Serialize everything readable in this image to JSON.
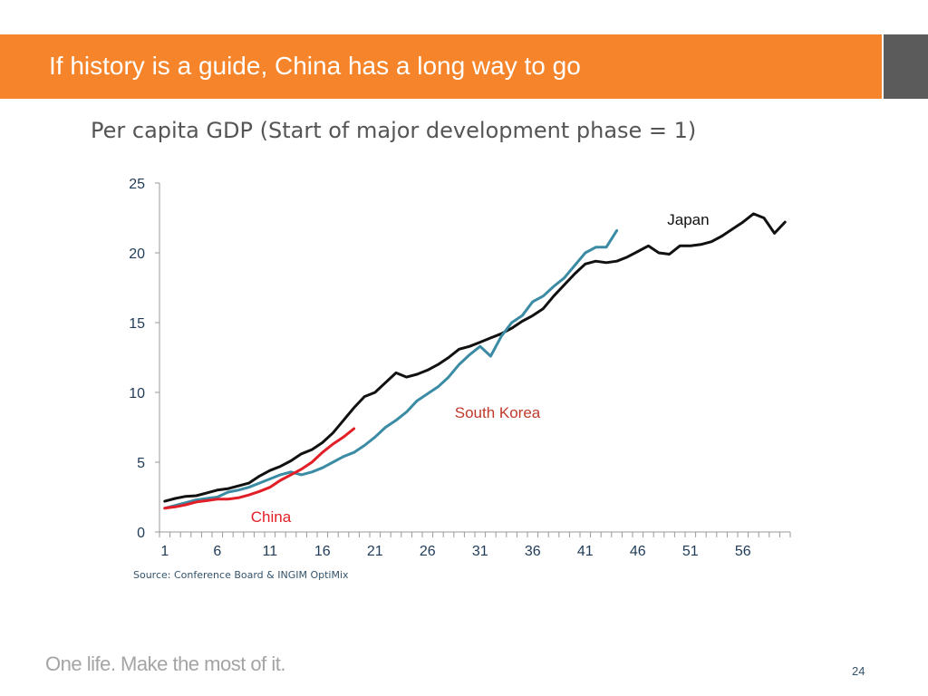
{
  "slide": {
    "title": "If history is a guide, China has a long way to go",
    "source": "Source: Conference Board & INGIM OptiMix",
    "tagline": "One life. Make the most of it.",
    "page_number": "24"
  },
  "colors": {
    "header_orange": "#f5842a",
    "side_block_grey": "#5b5b5b",
    "japan": "#111111",
    "south_korea": "#3a8ba3",
    "china": "#e21e26",
    "south_korea_label": "#c0392b",
    "axis_text": "#1f3b57"
  },
  "chart_data": {
    "type": "line",
    "title": "Per capita GDP (Start of major development phase = 1)",
    "xlabel": "",
    "ylabel": "",
    "xlim": [
      1,
      60
    ],
    "ylim": [
      0,
      25
    ],
    "y_ticks": [
      0,
      5,
      10,
      15,
      20,
      25
    ],
    "x_tick_labels": [
      1,
      6,
      11,
      16,
      21,
      26,
      31,
      36,
      41,
      46,
      51,
      56
    ],
    "grid": false,
    "legend": "inline labels",
    "series": [
      {
        "name": "Japan",
        "color": "#111111",
        "label_color": "#111111",
        "values": [
          2.2,
          2.4,
          2.55,
          2.6,
          2.8,
          3.0,
          3.1,
          3.3,
          3.5,
          4.0,
          4.4,
          4.7,
          5.1,
          5.6,
          5.9,
          6.4,
          7.1,
          8.0,
          8.9,
          9.7,
          10.0,
          10.7,
          11.4,
          11.1,
          11.3,
          11.6,
          12.0,
          12.5,
          13.1,
          13.3,
          13.6,
          13.9,
          14.2,
          14.6,
          15.1,
          15.5,
          16.0,
          16.9,
          17.7,
          18.5,
          19.2,
          19.4,
          19.3,
          19.4,
          19.7,
          20.1,
          20.5,
          20.0,
          19.9,
          20.5,
          20.5,
          20.6,
          20.8,
          21.2,
          21.7,
          22.2,
          22.8,
          22.5,
          21.4,
          22.2
        ]
      },
      {
        "name": "South Korea",
        "color": "#3a8ba3",
        "label_color": "#c0392b",
        "values": [
          1.7,
          1.9,
          2.1,
          2.3,
          2.4,
          2.5,
          2.85,
          3.0,
          3.2,
          3.5,
          3.8,
          4.1,
          4.3,
          4.1,
          4.3,
          4.6,
          5.0,
          5.4,
          5.7,
          6.2,
          6.8,
          7.5,
          8.0,
          8.6,
          9.4,
          9.9,
          10.4,
          11.1,
          12.0,
          12.7,
          13.3,
          12.6,
          14.0,
          15.0,
          15.5,
          16.5,
          16.9,
          17.6,
          18.2,
          19.1,
          20.0,
          20.4,
          20.4,
          21.6
        ]
      },
      {
        "name": "China",
        "color": "#e21e26",
        "label_color": "#e21e26",
        "values": [
          1.7,
          1.8,
          1.95,
          2.15,
          2.25,
          2.35,
          2.35,
          2.45,
          2.65,
          2.9,
          3.2,
          3.7,
          4.1,
          4.5,
          5.0,
          5.7,
          6.3,
          6.8,
          7.4
        ]
      }
    ]
  }
}
